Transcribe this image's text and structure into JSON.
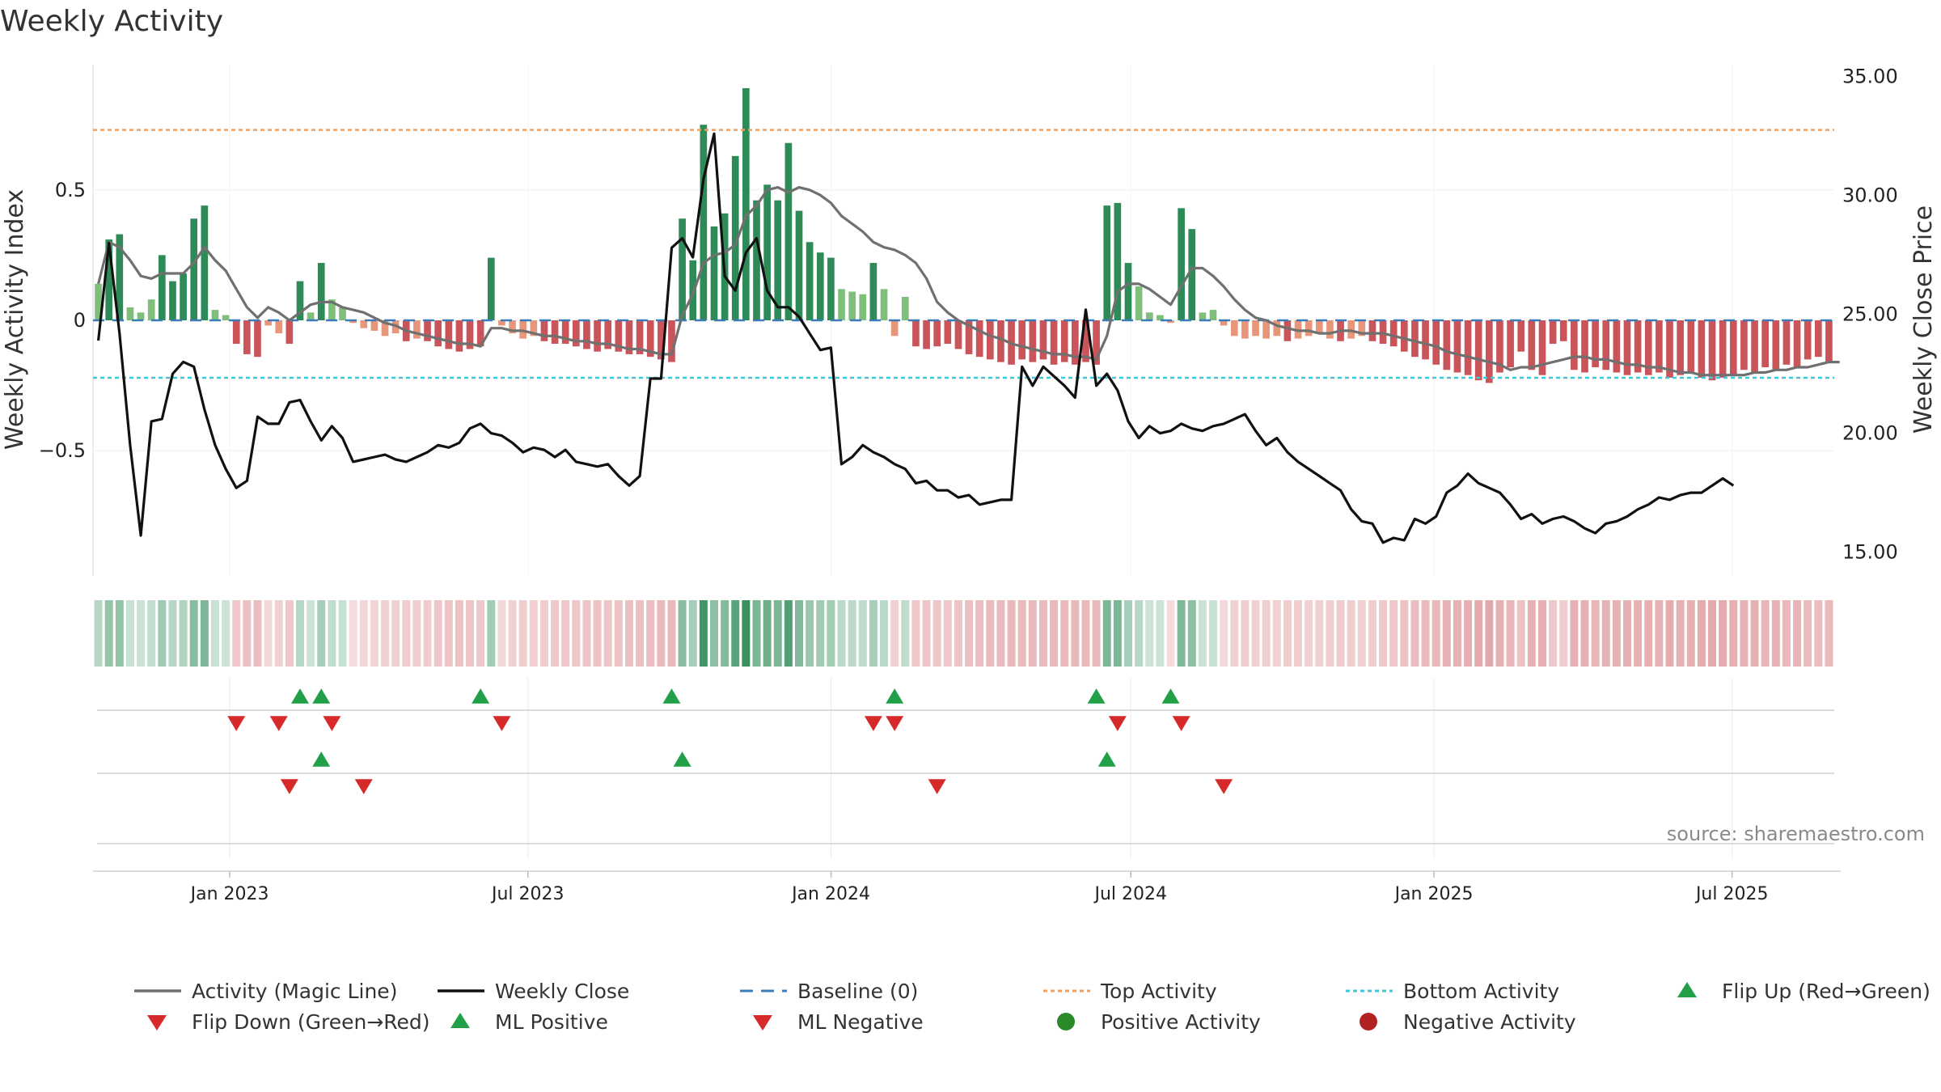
{
  "chart_data": {
    "type": "bar",
    "title": "Weekly Activity",
    "ylabel_left": "Weekly Activity Index",
    "ylabel_right": "Weekly Close Price",
    "y_left_ticks": [
      "0.5",
      "0",
      "−0.5"
    ],
    "y_left_tick_values": [
      0.5,
      0,
      -0.5
    ],
    "y_right_ticks": [
      "35.00",
      "30.00",
      "25.00",
      "20.00",
      "15.00"
    ],
    "y_right_tick_values": [
      35,
      30,
      25,
      20,
      15
    ],
    "ylim_left": [
      -0.98,
      0.98
    ],
    "ylim_right": [
      14.0,
      35.5
    ],
    "x_ticks": [
      "Jan 2023",
      "Jul 2023",
      "Jan 2024",
      "Jul 2024",
      "Jan 2025",
      "Jul 2025"
    ],
    "x_tick_dates": [
      "2023-01-01",
      "2023-07-01",
      "2024-01-01",
      "2024-07-01",
      "2025-01-01",
      "2025-07-01"
    ],
    "x_range": [
      "2022-10-10",
      "2025-09-01"
    ],
    "top_activity": 0.73,
    "bottom_activity": -0.22,
    "source": "source: sharemaestro.com",
    "colors": {
      "strong_green": "#2e8b57",
      "light_green": "#7fbf7b",
      "strong_red": "#c9555a",
      "light_red": "#e8967a",
      "magic_line": "#707070",
      "close": "#111111",
      "baseline": "#3b7cb8",
      "top": "#f0a060",
      "bottom": "#3fc8d8",
      "flip_up": "#22a047",
      "flip_down": "#d62a2a",
      "pos_dot": "#2a8a2a",
      "neg_dot": "#b22222"
    },
    "activity": [
      0.14,
      0.31,
      0.33,
      0.05,
      0.03,
      0.08,
      0.25,
      0.15,
      0.18,
      0.39,
      0.44,
      0.04,
      0.02,
      -0.09,
      -0.13,
      -0.14,
      -0.02,
      -0.05,
      -0.09,
      0.15,
      0.03,
      0.22,
      0.08,
      0.05,
      -0.01,
      -0.03,
      -0.04,
      -0.06,
      -0.05,
      -0.08,
      -0.07,
      -0.08,
      -0.1,
      -0.11,
      -0.12,
      -0.11,
      -0.1,
      0.24,
      -0.02,
      -0.05,
      -0.07,
      -0.06,
      -0.08,
      -0.09,
      -0.09,
      -0.1,
      -0.11,
      -0.12,
      -0.11,
      -0.12,
      -0.13,
      -0.13,
      -0.14,
      -0.15,
      -0.16,
      0.39,
      0.23,
      0.75,
      0.36,
      0.41,
      0.63,
      0.89,
      0.46,
      0.52,
      0.46,
      0.68,
      0.42,
      0.3,
      0.26,
      0.24,
      0.12,
      0.11,
      0.1,
      0.22,
      0.12,
      -0.06,
      0.09,
      -0.1,
      -0.11,
      -0.1,
      -0.09,
      -0.11,
      -0.13,
      -0.14,
      -0.15,
      -0.16,
      -0.17,
      -0.15,
      -0.16,
      -0.15,
      -0.17,
      -0.16,
      -0.17,
      -0.16,
      -0.17,
      0.44,
      0.45,
      0.22,
      0.13,
      0.03,
      0.02,
      -0.01,
      0.43,
      0.35,
      0.03,
      0.04,
      -0.02,
      -0.06,
      -0.07,
      -0.06,
      -0.07,
      -0.06,
      -0.08,
      -0.07,
      -0.06,
      -0.05,
      -0.07,
      -0.08,
      -0.07,
      -0.06,
      -0.08,
      -0.09,
      -0.1,
      -0.12,
      -0.14,
      -0.15,
      -0.17,
      -0.19,
      -0.2,
      -0.21,
      -0.23,
      -0.24,
      -0.2,
      -0.18,
      -0.12,
      -0.19,
      -0.21,
      -0.09,
      -0.08,
      -0.19,
      -0.2,
      -0.18,
      -0.19,
      -0.2,
      -0.21,
      -0.2,
      -0.21,
      -0.2,
      -0.22,
      -0.21,
      -0.2,
      -0.22,
      -0.23,
      -0.22,
      -0.21,
      -0.19,
      -0.2,
      -0.18,
      -0.19,
      -0.17,
      -0.18,
      -0.15,
      -0.14,
      -0.16
    ],
    "magic_line": [
      0.14,
      0.3,
      0.28,
      0.23,
      0.17,
      0.16,
      0.18,
      0.18,
      0.18,
      0.22,
      0.28,
      0.23,
      0.19,
      0.12,
      0.05,
      0.01,
      0.05,
      0.03,
      0.0,
      0.03,
      0.06,
      0.07,
      0.07,
      0.05,
      0.04,
      0.03,
      0.01,
      -0.01,
      -0.02,
      -0.04,
      -0.05,
      -0.06,
      -0.07,
      -0.08,
      -0.09,
      -0.09,
      -0.1,
      -0.03,
      -0.03,
      -0.04,
      -0.04,
      -0.05,
      -0.06,
      -0.06,
      -0.07,
      -0.08,
      -0.08,
      -0.09,
      -0.09,
      -0.1,
      -0.11,
      -0.11,
      -0.12,
      -0.13,
      -0.13,
      0.02,
      0.1,
      0.22,
      0.25,
      0.26,
      0.29,
      0.4,
      0.44,
      0.5,
      0.51,
      0.49,
      0.51,
      0.5,
      0.48,
      0.45,
      0.4,
      0.37,
      0.34,
      0.3,
      0.28,
      0.27,
      0.25,
      0.22,
      0.16,
      0.07,
      0.03,
      0.0,
      -0.02,
      -0.04,
      -0.06,
      -0.07,
      -0.09,
      -0.1,
      -0.11,
      -0.12,
      -0.13,
      -0.13,
      -0.14,
      -0.14,
      -0.15,
      -0.06,
      0.11,
      0.14,
      0.14,
      0.12,
      0.09,
      0.06,
      0.13,
      0.2,
      0.2,
      0.17,
      0.13,
      0.08,
      0.04,
      0.01,
      0.0,
      -0.02,
      -0.03,
      -0.04,
      -0.04,
      -0.05,
      -0.05,
      -0.04,
      -0.04,
      -0.05,
      -0.05,
      -0.05,
      -0.06,
      -0.07,
      -0.08,
      -0.09,
      -0.1,
      -0.12,
      -0.13,
      -0.14,
      -0.15,
      -0.16,
      -0.17,
      -0.19,
      -0.18,
      -0.18,
      -0.17,
      -0.16,
      -0.15,
      -0.14,
      -0.14,
      -0.15,
      -0.15,
      -0.16,
      -0.17,
      -0.17,
      -0.18,
      -0.18,
      -0.19,
      -0.2,
      -0.2,
      -0.21,
      -0.21,
      -0.21,
      -0.21,
      -0.21,
      -0.2,
      -0.2,
      -0.19,
      -0.19,
      -0.18,
      -0.18,
      -0.17,
      -0.16,
      -0.16
    ],
    "close": [
      23.9,
      28.0,
      24.2,
      19.5,
      15.7,
      20.5,
      20.6,
      22.5,
      23.0,
      22.8,
      21.0,
      19.5,
      18.5,
      17.7,
      18.0,
      20.7,
      20.4,
      20.4,
      21.3,
      21.4,
      20.5,
      19.7,
      20.3,
      19.8,
      18.8,
      18.9,
      19.0,
      19.1,
      18.9,
      18.8,
      19.0,
      19.2,
      19.5,
      19.4,
      19.6,
      20.2,
      20.4,
      20.0,
      19.9,
      19.6,
      19.2,
      19.4,
      19.3,
      19.0,
      19.3,
      18.8,
      18.7,
      18.6,
      18.7,
      18.2,
      17.8,
      18.2,
      22.3,
      22.3,
      27.8,
      28.2,
      27.4,
      30.7,
      32.6,
      26.6,
      26.0,
      27.6,
      28.2,
      26.0,
      25.3,
      25.3,
      24.9,
      24.2,
      23.5,
      23.6,
      18.7,
      19.0,
      19.5,
      19.2,
      19.0,
      18.7,
      18.5,
      17.9,
      18.0,
      17.6,
      17.6,
      17.3,
      17.4,
      17.0,
      17.1,
      17.2,
      17.2,
      22.8,
      22.0,
      22.8,
      22.4,
      22.0,
      21.5,
      25.2,
      22.0,
      22.5,
      21.8,
      20.5,
      19.8,
      20.3,
      20.0,
      20.1,
      20.4,
      20.2,
      20.1,
      20.3,
      20.4,
      20.6,
      20.8,
      20.1,
      19.5,
      19.8,
      19.2,
      18.8,
      18.5,
      18.2,
      17.9,
      17.6,
      16.8,
      16.3,
      16.2,
      15.4,
      15.6,
      15.5,
      16.4,
      16.2,
      16.5,
      17.5,
      17.8,
      18.3,
      17.9,
      17.7,
      17.5,
      17.0,
      16.4,
      16.6,
      16.2,
      16.4,
      16.5,
      16.3,
      16.0,
      15.8,
      16.2,
      16.3,
      16.5,
      16.8,
      17.0,
      17.3,
      17.2,
      17.4,
      17.5,
      17.5,
      17.8,
      18.1,
      17.8
    ],
    "flip_up_idx": [
      19,
      21,
      36,
      54,
      75,
      94,
      101
    ],
    "flip_down_idx": [
      13,
      17,
      22,
      38,
      73,
      75,
      96,
      102
    ],
    "ml_positive_idx": [
      21,
      55,
      95
    ],
    "ml_negative_idx": [
      18,
      25,
      79,
      106
    ],
    "legend": [
      {
        "label": "Activity (Magic Line)",
        "symbol": "line",
        "color": "#707070"
      },
      {
        "label": "Weekly Close",
        "symbol": "line",
        "color": "#111111"
      },
      {
        "label": "Baseline (0)",
        "symbol": "dash",
        "color": "#3b7cb8"
      },
      {
        "label": "Top Activity",
        "symbol": "dot-line",
        "color": "#f0a060"
      },
      {
        "label": "Bottom Activity",
        "symbol": "dot-line",
        "color": "#3fc8d8"
      },
      {
        "label": "Flip Up (Red→Green)",
        "symbol": "tri-up",
        "color": "#22a047"
      },
      {
        "label": "Flip Down (Green→Red)",
        "symbol": "tri-down",
        "color": "#d62a2a"
      },
      {
        "label": "ML Positive",
        "symbol": "tri-up",
        "color": "#22a047"
      },
      {
        "label": "ML Negative",
        "symbol": "tri-down",
        "color": "#d62a2a"
      },
      {
        "label": "Positive Activity",
        "symbol": "dot",
        "color": "#2a8a2a"
      },
      {
        "label": "Negative Activity",
        "symbol": "dot",
        "color": "#b22222"
      }
    ]
  }
}
